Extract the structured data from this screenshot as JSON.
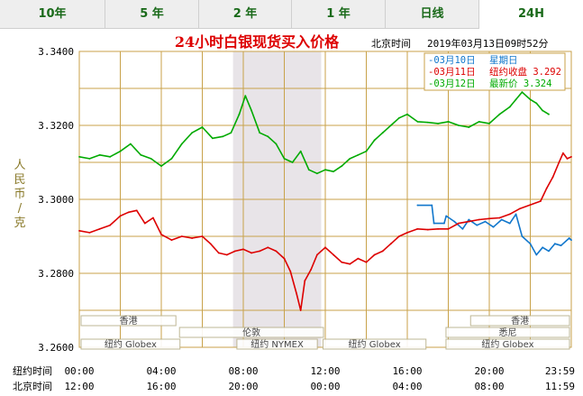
{
  "tabs": [
    {
      "label": "10年",
      "active": false
    },
    {
      "label": "5 年",
      "active": false
    },
    {
      "label": "2 年",
      "active": false
    },
    {
      "label": "1 年",
      "active": false
    },
    {
      "label": "日线",
      "active": false
    },
    {
      "label": "24H",
      "active": true
    }
  ],
  "chart_data": {
    "type": "line",
    "title": "24小时白银现货买入价格",
    "header_label": "北京时间",
    "header_datetime": "2019年03月13日09时52分",
    "ylabel": "人民币/克",
    "ylim": [
      3.26,
      3.34
    ],
    "yticks": [
      "3.3400",
      "3.3200",
      "3.3000",
      "3.2800",
      "3.2600"
    ],
    "x_unit": "hour",
    "xlim": [
      0,
      24
    ],
    "x_rows": [
      {
        "label": "纽约时间",
        "ticks": [
          "00:00",
          "04:00",
          "08:00",
          "12:00",
          "16:00",
          "20:00",
          "23:59"
        ]
      },
      {
        "label": "北京时间",
        "ticks": [
          "12:00",
          "16:00",
          "20:00",
          "00:00",
          "04:00",
          "08:00",
          "11:59"
        ]
      }
    ],
    "legend": {
      "position": "top-right",
      "entries": [
        {
          "date": "03月10日",
          "text": "星期日",
          "color": "#1177cc"
        },
        {
          "date": "03月11日",
          "text": "纽约收盘 3.292",
          "color": "#dd0000"
        },
        {
          "date": "03月12日",
          "text": "最新价 3.324",
          "color": "#00aa00"
        }
      ]
    },
    "shaded_x_range": [
      7.5,
      11.8
    ],
    "sessions": [
      {
        "name": "香港",
        "x_start": 0,
        "x_end": 4.8
      },
      {
        "name": "伦敦",
        "x_start": 4.8,
        "x_end": 12.0
      },
      {
        "name": "纽约 Globex",
        "x_start": 0,
        "x_end": 5.0
      },
      {
        "name": "纽约 NYMEX",
        "x_start": 7.6,
        "x_end": 11.7
      },
      {
        "name": "纽约 Globex",
        "x_start": 11.8,
        "x_end": 17.0
      },
      {
        "name": "香港",
        "x_start": 19.0,
        "x_end": 24.0
      },
      {
        "name": "悉尼",
        "x_start": 17.8,
        "x_end": 24.0
      },
      {
        "name": "纽约 Globex",
        "x_start": 17.8,
        "x_end": 24.0
      }
    ],
    "series": [
      {
        "name": "03月10日",
        "color": "#1177cc",
        "points": [
          [
            16.5,
            3.2984
          ],
          [
            17.2,
            3.2984
          ],
          [
            17.3,
            3.2935
          ],
          [
            17.8,
            3.2935
          ],
          [
            17.9,
            3.2955
          ],
          [
            18.3,
            3.294
          ],
          [
            18.7,
            3.292
          ],
          [
            19.0,
            3.2945
          ],
          [
            19.4,
            3.293
          ],
          [
            19.8,
            3.294
          ],
          [
            20.2,
            3.2925
          ],
          [
            20.6,
            3.2945
          ],
          [
            21.0,
            3.2935
          ],
          [
            21.3,
            3.296
          ],
          [
            21.6,
            3.29
          ],
          [
            22.0,
            3.288
          ],
          [
            22.3,
            3.285
          ],
          [
            22.6,
            3.287
          ],
          [
            22.9,
            3.286
          ],
          [
            23.2,
            3.288
          ],
          [
            23.5,
            3.2875
          ],
          [
            23.9,
            3.2895
          ],
          [
            24.0,
            3.289
          ]
        ]
      },
      {
        "name": "03月11日",
        "color": "#dd0000",
        "points": [
          [
            0,
            3.2915
          ],
          [
            0.5,
            3.291
          ],
          [
            1.0,
            3.292
          ],
          [
            1.5,
            3.293
          ],
          [
            2.0,
            3.2955
          ],
          [
            2.4,
            3.2965
          ],
          [
            2.8,
            3.297
          ],
          [
            3.2,
            3.2935
          ],
          [
            3.6,
            3.295
          ],
          [
            4.0,
            3.2905
          ],
          [
            4.5,
            3.289
          ],
          [
            5.0,
            3.29
          ],
          [
            5.5,
            3.2895
          ],
          [
            6.0,
            3.29
          ],
          [
            6.4,
            3.288
          ],
          [
            6.8,
            3.2855
          ],
          [
            7.2,
            3.285
          ],
          [
            7.6,
            3.286
          ],
          [
            8.0,
            3.2865
          ],
          [
            8.4,
            3.2855
          ],
          [
            8.8,
            3.286
          ],
          [
            9.2,
            3.287
          ],
          [
            9.6,
            3.286
          ],
          [
            10.0,
            3.284
          ],
          [
            10.3,
            3.2805
          ],
          [
            10.6,
            3.2745
          ],
          [
            10.8,
            3.27
          ],
          [
            11.0,
            3.278
          ],
          [
            11.3,
            3.281
          ],
          [
            11.6,
            3.285
          ],
          [
            12.0,
            3.287
          ],
          [
            12.4,
            3.285
          ],
          [
            12.8,
            3.283
          ],
          [
            13.2,
            3.2825
          ],
          [
            13.6,
            3.284
          ],
          [
            14.0,
            3.283
          ],
          [
            14.4,
            3.285
          ],
          [
            14.8,
            3.286
          ],
          [
            15.2,
            3.288
          ],
          [
            15.6,
            3.29
          ],
          [
            16.0,
            3.291
          ],
          [
            16.5,
            3.292
          ],
          [
            17.0,
            3.2918
          ],
          [
            17.5,
            3.292
          ],
          [
            18.0,
            3.292
          ],
          [
            18.5,
            3.2935
          ],
          [
            19.0,
            3.294
          ],
          [
            19.5,
            3.2945
          ],
          [
            20.0,
            3.2948
          ],
          [
            20.5,
            3.295
          ],
          [
            21.0,
            3.296
          ],
          [
            21.5,
            3.2975
          ],
          [
            22.0,
            3.2985
          ],
          [
            22.5,
            3.2995
          ],
          [
            22.8,
            3.303
          ],
          [
            23.1,
            3.306
          ],
          [
            23.4,
            3.31
          ],
          [
            23.6,
            3.3125
          ],
          [
            23.8,
            3.311
          ],
          [
            24.0,
            3.3115
          ]
        ]
      },
      {
        "name": "03月12日",
        "color": "#00aa00",
        "points": [
          [
            0,
            3.3115
          ],
          [
            0.5,
            3.311
          ],
          [
            1.0,
            3.312
          ],
          [
            1.5,
            3.3115
          ],
          [
            2.0,
            3.313
          ],
          [
            2.5,
            3.315
          ],
          [
            3.0,
            3.312
          ],
          [
            3.5,
            3.311
          ],
          [
            4.0,
            3.309
          ],
          [
            4.5,
            3.311
          ],
          [
            5.0,
            3.315
          ],
          [
            5.5,
            3.318
          ],
          [
            6.0,
            3.3195
          ],
          [
            6.5,
            3.3165
          ],
          [
            7.0,
            3.317
          ],
          [
            7.4,
            3.318
          ],
          [
            7.8,
            3.323
          ],
          [
            8.1,
            3.328
          ],
          [
            8.4,
            3.324
          ],
          [
            8.8,
            3.318
          ],
          [
            9.2,
            3.317
          ],
          [
            9.6,
            3.315
          ],
          [
            10.0,
            3.311
          ],
          [
            10.4,
            3.31
          ],
          [
            10.8,
            3.313
          ],
          [
            11.2,
            3.308
          ],
          [
            11.6,
            3.307
          ],
          [
            12.0,
            3.308
          ],
          [
            12.4,
            3.3075
          ],
          [
            12.8,
            3.309
          ],
          [
            13.2,
            3.311
          ],
          [
            13.6,
            3.312
          ],
          [
            14.0,
            3.313
          ],
          [
            14.4,
            3.316
          ],
          [
            14.8,
            3.318
          ],
          [
            15.2,
            3.32
          ],
          [
            15.6,
            3.322
          ],
          [
            16.0,
            3.323
          ],
          [
            16.5,
            3.321
          ],
          [
            17.0,
            3.3208
          ],
          [
            17.5,
            3.3205
          ],
          [
            18.0,
            3.321
          ],
          [
            18.5,
            3.32
          ],
          [
            19.0,
            3.3195
          ],
          [
            19.5,
            3.321
          ],
          [
            20.0,
            3.3205
          ],
          [
            20.5,
            3.323
          ],
          [
            21.0,
            3.325
          ],
          [
            21.3,
            3.327
          ],
          [
            21.6,
            3.329
          ],
          [
            22.0,
            3.327
          ],
          [
            22.3,
            3.326
          ],
          [
            22.6,
            3.324
          ],
          [
            22.9,
            3.323
          ]
        ]
      }
    ],
    "grid": true
  }
}
